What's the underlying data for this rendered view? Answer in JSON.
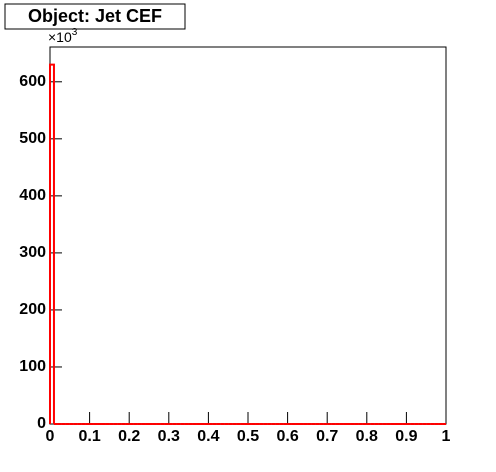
{
  "chart_data": {
    "type": "histogram",
    "title": "Object: Jet CEF",
    "y_multiplier": {
      "base": "×10",
      "exponent": "3"
    },
    "bins": [
      0,
      0.01,
      0.02,
      0.03,
      0.04,
      0.05,
      0.06,
      0.07,
      0.08,
      0.09,
      0.1,
      0.11,
      0.12,
      0.13,
      0.14,
      0.15,
      0.16,
      0.17,
      0.18,
      0.19,
      0.2,
      0.21,
      0.22,
      0.23,
      0.24,
      0.25,
      0.26,
      0.27,
      0.28,
      0.29,
      0.3,
      0.31,
      0.32,
      0.33,
      0.34,
      0.35,
      0.36,
      0.37,
      0.38,
      0.39,
      0.4,
      0.41,
      0.42,
      0.43,
      0.44,
      0.45,
      0.46,
      0.47,
      0.48,
      0.49,
      0.5,
      0.51,
      0.52,
      0.53,
      0.54,
      0.55,
      0.56,
      0.57,
      0.58,
      0.59,
      0.6,
      0.61,
      0.62,
      0.63,
      0.64,
      0.65,
      0.66,
      0.67,
      0.68,
      0.69,
      0.7,
      0.71,
      0.72,
      0.73,
      0.74,
      0.75,
      0.76,
      0.77,
      0.78,
      0.79,
      0.8,
      0.81,
      0.82,
      0.83,
      0.84,
      0.85,
      0.86,
      0.87,
      0.88,
      0.89,
      0.9,
      0.91,
      0.92,
      0.93,
      0.94,
      0.95,
      0.96,
      0.97,
      0.98,
      0.99,
      1
    ],
    "values": [
      630,
      0,
      0,
      0,
      0,
      0,
      0,
      0,
      0,
      0,
      0,
      0,
      0,
      0,
      0,
      0,
      0,
      0,
      0,
      0,
      0,
      0,
      0,
      0,
      0,
      0,
      0,
      0,
      0,
      0,
      0,
      0,
      0,
      0,
      0,
      0,
      0,
      0,
      0,
      0,
      0,
      0,
      0,
      0,
      0,
      0,
      0,
      0,
      0,
      0,
      0,
      0,
      0,
      0,
      0,
      0,
      0,
      0,
      0,
      0,
      0,
      0,
      0,
      0,
      0,
      0,
      0,
      0,
      0,
      0,
      0,
      0,
      0,
      0,
      0,
      0,
      0,
      0,
      0,
      0,
      0,
      0,
      0,
      0,
      0,
      0,
      0,
      0,
      0,
      0,
      0,
      0,
      0,
      0,
      0,
      0,
      0,
      0,
      0,
      0
    ],
    "color": "#ff0000",
    "xlim": [
      0,
      1
    ],
    "xticks": [
      0,
      0.1,
      0.2,
      0.3,
      0.4,
      0.5,
      0.6,
      0.7,
      0.8,
      0.9,
      1
    ],
    "ylim": [
      0,
      661
    ],
    "yticks": [
      0,
      100,
      200,
      300,
      400,
      500,
      600
    ]
  }
}
